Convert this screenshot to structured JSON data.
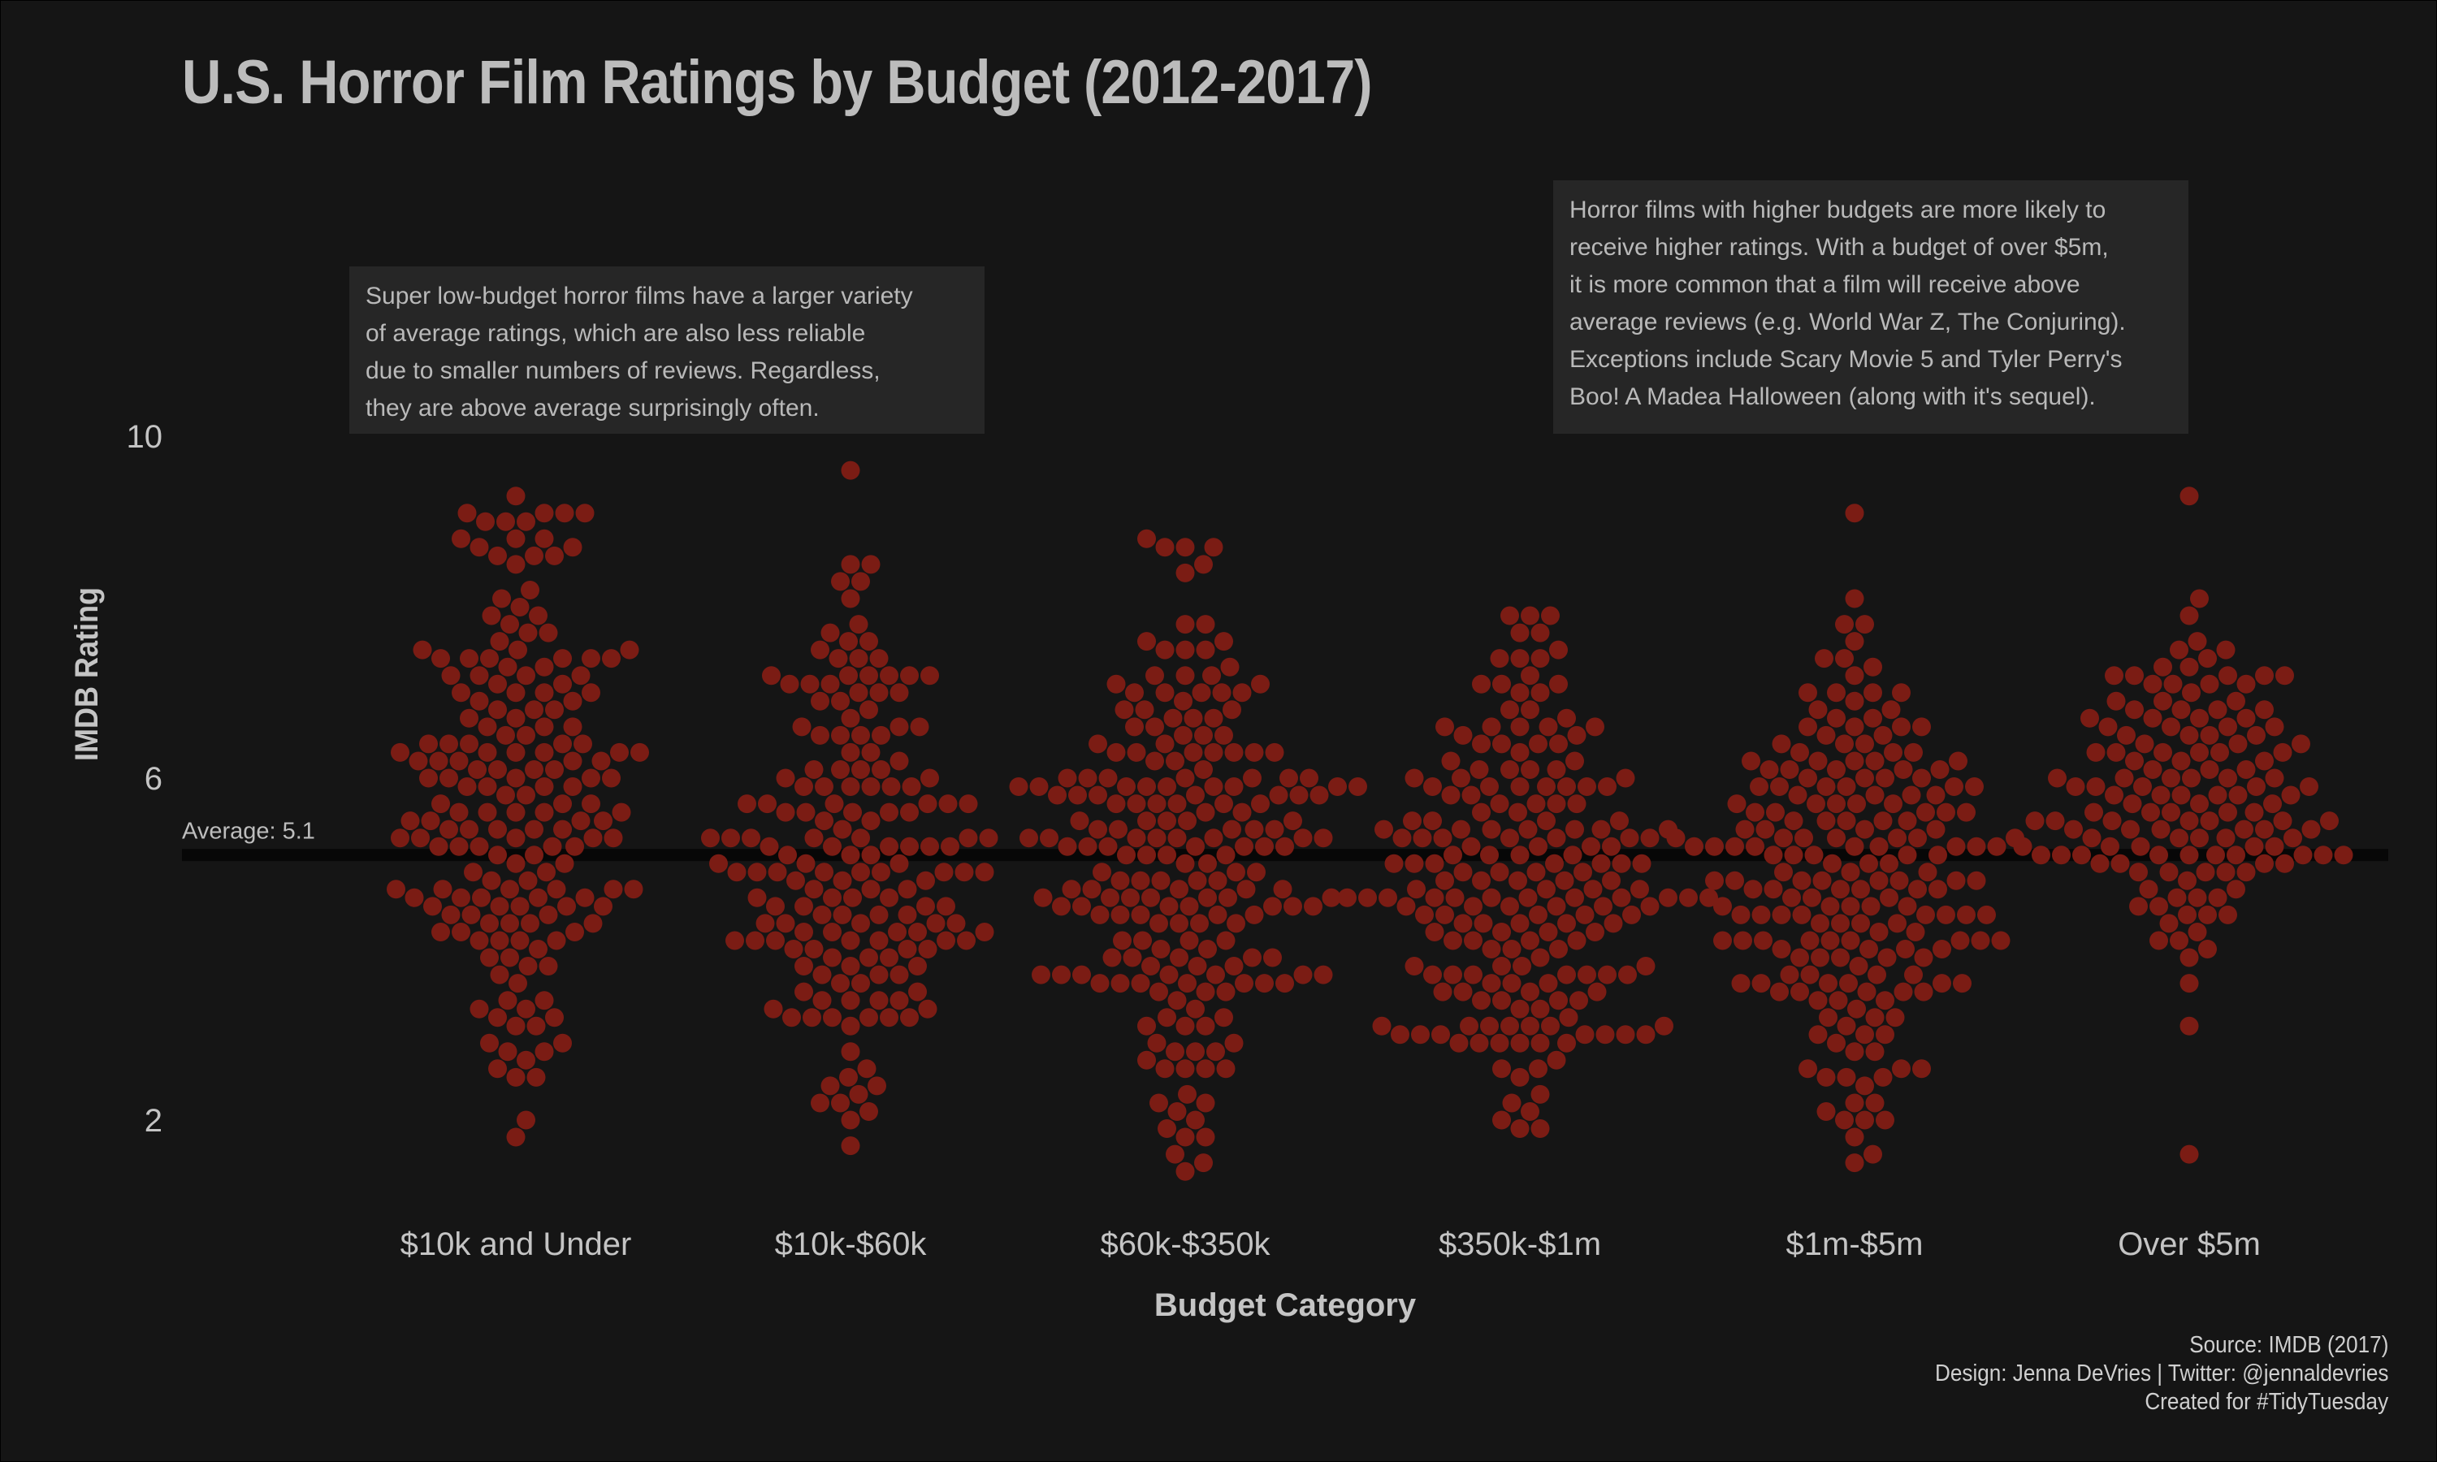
{
  "chart_data": {
    "type": "scatter",
    "title": "U.S. Horror Film Ratings by Budget (2012-2017)",
    "xlabel": "Budget Category",
    "ylabel": "IMDB Rating",
    "categories": [
      "$10k and Under",
      "$10k-$60k",
      "$60k-$350k",
      "$350k-$1m",
      "$1m-$5m",
      "Over $5m"
    ],
    "y_ticks": [
      2,
      6,
      10
    ],
    "ylim": [
      0.8,
      11.3
    ],
    "grid": false,
    "average": {
      "value": 5.1,
      "label": "Average:  5.1"
    },
    "point_color": "#7b1c14",
    "groups": [
      {
        "category": "$10k and Under",
        "n": 180,
        "min": 1.8,
        "max": 9.3,
        "center": 5.8,
        "spread": 1.55,
        "extremes": [
          1.8,
          2.0,
          2.6,
          2.8,
          9.0,
          9.1,
          9.3
        ]
      },
      {
        "category": "$10k-$60k",
        "n": 170,
        "min": 1.7,
        "max": 9.6,
        "center": 4.9,
        "spread": 1.4,
        "extremes": [
          1.7,
          2.0,
          2.1,
          8.3,
          8.3,
          8.5,
          9.6
        ]
      },
      {
        "category": "$60k-$350k",
        "n": 205,
        "min": 1.4,
        "max": 8.8,
        "center": 5.0,
        "spread": 1.45,
        "extremes": [
          1.4,
          1.5,
          1.8,
          8.5,
          8.7,
          8.8
        ]
      },
      {
        "category": "$350k-$1m",
        "n": 195,
        "min": 1.9,
        "max": 7.9,
        "center": 4.7,
        "spread": 1.3,
        "extremes": [
          1.9,
          1.9,
          2.2,
          7.7,
          7.9,
          7.9
        ]
      },
      {
        "category": "$1m-$5m",
        "n": 200,
        "min": 1.5,
        "max": 9.1,
        "center": 4.8,
        "spread": 1.3,
        "extremes": [
          1.5,
          1.8,
          2.0,
          7.8,
          8.1,
          9.1
        ]
      },
      {
        "category": "Over $5m",
        "n": 140,
        "min": 1.6,
        "max": 9.3,
        "center": 5.9,
        "spread": 1.0,
        "extremes": [
          1.6,
          3.1,
          3.6,
          7.5,
          7.9,
          9.3
        ]
      }
    ],
    "annotations": [
      "Super low-budget horror films have a larger variety of average ratings, which are also less reliable due to smaller numbers of reviews. Regardless, they are above average surprisingly often.",
      "Horror films with higher budgets are more likely to receive higher ratings. With a budget of over $5m, it is more common that a film will receive above average reviews (e.g. World War Z, The Conjuring). Exceptions include Scary Movie 5 and Tyler Perry's Boo! A Madea Halloween (along with it's sequel)."
    ]
  },
  "notes": {
    "low_budget": "Super low-budget horror films have a larger variety\nof average ratings, which are also less reliable\ndue to smaller numbers of reviews. Regardless,\nthey are above average surprisingly often.",
    "high_budget": "Horror films with higher budgets are more likely to\nreceive higher ratings. With a budget of over $5m,\nit is more common that a film will receive above\naverage reviews (e.g. World War Z, The Conjuring).\nExceptions include Scary Movie 5 and Tyler Perry's\nBoo! A Madea Halloween (along with it's sequel)."
  },
  "credits": {
    "source": "Source: IMDB (2017)",
    "design": "Design: Jenna DeVries | Twitter: @jennaldevries",
    "created": "Created for #TidyTuesday"
  },
  "colors": {
    "background": "#151515",
    "note_background": "#262626",
    "average_line": "#000000"
  }
}
